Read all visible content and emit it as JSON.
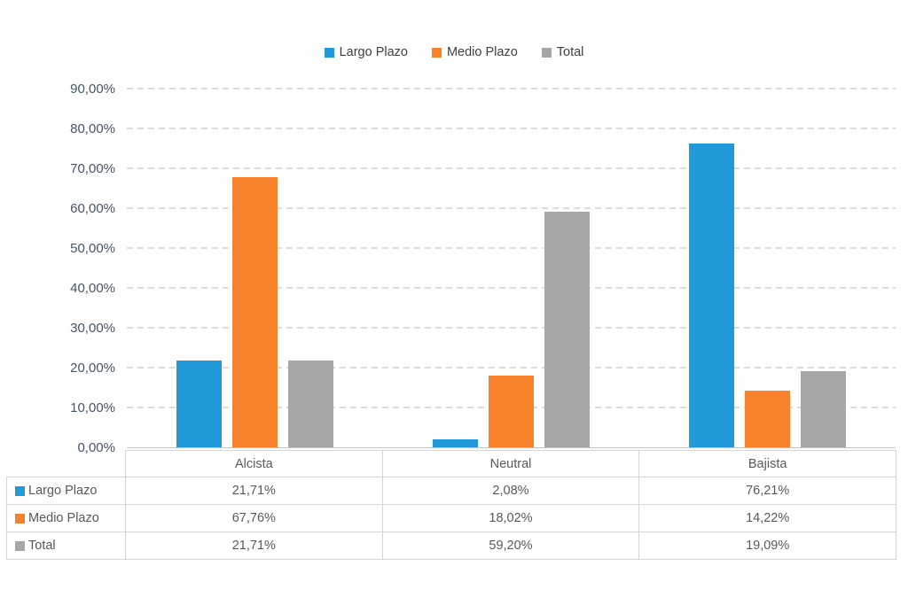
{
  "legend": {
    "position": "top",
    "items": [
      {
        "label": "Largo Plazo",
        "color": "#2299D8",
        "swatch_icon": "blue-square-icon"
      },
      {
        "label": "Medio Plazo",
        "color": "#F8822C",
        "swatch_icon": "orange-square-icon"
      },
      {
        "label": "Total",
        "color": "#A6A6A6",
        "swatch_icon": "gray-square-icon"
      }
    ]
  },
  "chart_data": {
    "type": "bar",
    "title": "",
    "xlabel": "",
    "ylabel": "",
    "categories": [
      "Alcista",
      "Neutral",
      "Bajista"
    ],
    "series": [
      {
        "name": "Largo Plazo",
        "color": "#2299D8",
        "values": [
          21.71,
          2.08,
          76.21
        ],
        "value_labels": [
          "21,71%",
          "2,08%",
          "76,21%"
        ]
      },
      {
        "name": "Medio Plazo",
        "color": "#F8822C",
        "values": [
          67.76,
          18.02,
          14.22
        ],
        "value_labels": [
          "67,76%",
          "18,02%",
          "14,22%"
        ]
      },
      {
        "name": "Total",
        "color": "#A6A6A6",
        "values": [
          21.71,
          59.2,
          19.09
        ],
        "value_labels": [
          "21,71%",
          "59,20%",
          "19,09%"
        ]
      }
    ],
    "ylim": [
      0,
      90
    ],
    "ytick_step": 10,
    "ytick_labels": [
      "0,00%",
      "10,00%",
      "20,00%",
      "30,00%",
      "40,00%",
      "50,00%",
      "60,00%",
      "70,00%",
      "80,00%",
      "90,00%"
    ],
    "grid": "horizontal-dashed",
    "legend_position": "top",
    "data_table_shown": true
  },
  "colors": {
    "background": "#ffffff",
    "gridline": "#dcdcdc",
    "axis_line": "#c6c6c6",
    "axis_label_text": "#44546A",
    "legend_text": "#404040",
    "table_text": "#595959",
    "table_border": "#d6d6d6",
    "series_blue": "#2299D8",
    "series_orange": "#F8822C",
    "series_gray": "#A6A6A6"
  }
}
